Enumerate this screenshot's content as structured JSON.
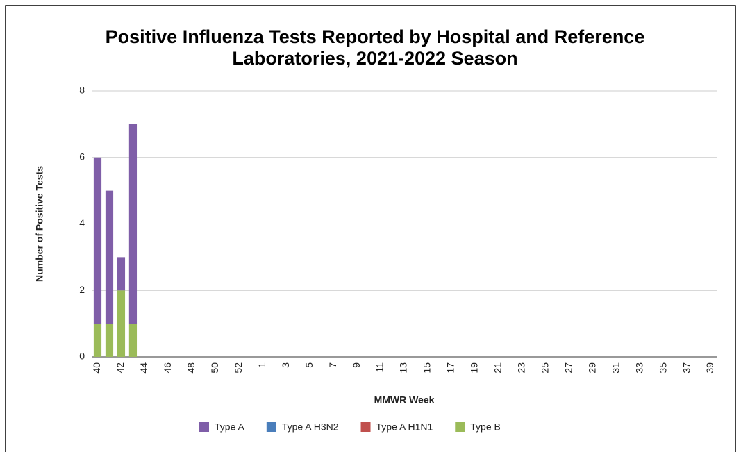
{
  "chart_data": {
    "type": "bar",
    "stacked": true,
    "title": "Positive Influenza Tests Reported by Hospital and Reference Laboratories, 2021-2022 Season",
    "x_label": "MMWR Week",
    "y_label": "Number of Positive Tests",
    "categories": [
      "40",
      null,
      "42",
      null,
      "44",
      null,
      "46",
      null,
      "48",
      null,
      "50",
      null,
      "52",
      null,
      "1",
      null,
      "3",
      null,
      "5",
      null,
      "7",
      null,
      "9",
      null,
      "11",
      null,
      "13",
      null,
      "15",
      null,
      "17",
      null,
      "19",
      null,
      "21",
      null,
      "23",
      null,
      "25",
      null,
      "27",
      null,
      "29",
      null,
      "31",
      null,
      "33",
      null,
      "35",
      null,
      "37",
      null,
      "39"
    ],
    "series": [
      {
        "name": "Type A",
        "color": "#7f5ea8",
        "values": [
          5,
          4,
          1,
          6,
          null,
          null,
          null,
          null,
          null,
          null,
          null,
          null,
          null,
          null,
          null,
          null,
          null,
          null,
          null,
          null,
          null,
          null,
          null,
          null,
          null,
          null,
          null,
          null,
          null,
          null,
          null,
          null,
          null,
          null,
          null,
          null,
          null,
          null,
          null,
          null,
          null,
          null,
          null,
          null,
          null,
          null,
          null,
          null,
          null,
          null,
          null,
          null,
          null
        ]
      },
      {
        "name": "Type A H3N2",
        "color": "#4a7ebb",
        "values": [
          0,
          0,
          0,
          0,
          null,
          null,
          null,
          null,
          null,
          null,
          null,
          null,
          null,
          null,
          null,
          null,
          null,
          null,
          null,
          null,
          null,
          null,
          null,
          null,
          null,
          null,
          null,
          null,
          null,
          null,
          null,
          null,
          null,
          null,
          null,
          null,
          null,
          null,
          null,
          null,
          null,
          null,
          null,
          null,
          null,
          null,
          null,
          null,
          null,
          null,
          null,
          null,
          null
        ]
      },
      {
        "name": "Type A H1N1",
        "color": "#c0504d",
        "values": [
          0,
          0,
          0,
          0,
          null,
          null,
          null,
          null,
          null,
          null,
          null,
          null,
          null,
          null,
          null,
          null,
          null,
          null,
          null,
          null,
          null,
          null,
          null,
          null,
          null,
          null,
          null,
          null,
          null,
          null,
          null,
          null,
          null,
          null,
          null,
          null,
          null,
          null,
          null,
          null,
          null,
          null,
          null,
          null,
          null,
          null,
          null,
          null,
          null,
          null,
          null,
          null,
          null
        ]
      },
      {
        "name": "Type B",
        "color": "#9bbb59",
        "values": [
          1,
          1,
          2,
          1,
          null,
          null,
          null,
          null,
          null,
          null,
          null,
          null,
          null,
          null,
          null,
          null,
          null,
          null,
          null,
          null,
          null,
          null,
          null,
          null,
          null,
          null,
          null,
          null,
          null,
          null,
          null,
          null,
          null,
          null,
          null,
          null,
          null,
          null,
          null,
          null,
          null,
          null,
          null,
          null,
          null,
          null,
          null,
          null,
          null,
          null,
          null,
          null,
          null
        ]
      }
    ],
    "ylim": [
      0,
      8
    ],
    "yticks": [
      0,
      2,
      4,
      6,
      8
    ],
    "grid": true,
    "legend": "bottom"
  }
}
